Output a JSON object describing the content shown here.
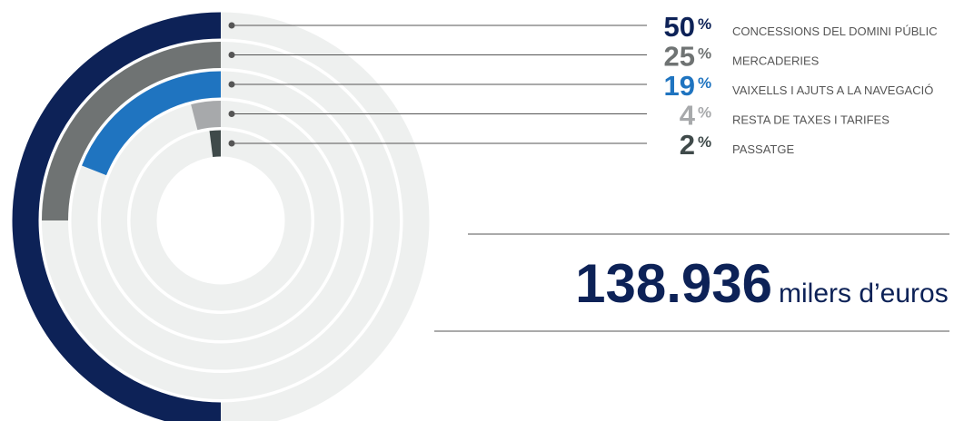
{
  "chart_data": {
    "type": "radial_bar",
    "categories": [
      "CONCESSIONS DEL DOMINI PÚBLIC",
      "MERCADERIES",
      "VAIXELLS I AJUTS A LA NAVEGACIÓ",
      "RESTA DE TAXES I TARIFES",
      "PASSATGE"
    ],
    "values": [
      50,
      25,
      19,
      4,
      2
    ],
    "unit": "%",
    "colors": [
      "#0d2257",
      "#6f7373",
      "#1f74c0",
      "#a7a9ab",
      "#3f4a4a"
    ],
    "track_color": "#eef0ef",
    "total": "138.936",
    "total_unit": "milers d’euros"
  }
}
